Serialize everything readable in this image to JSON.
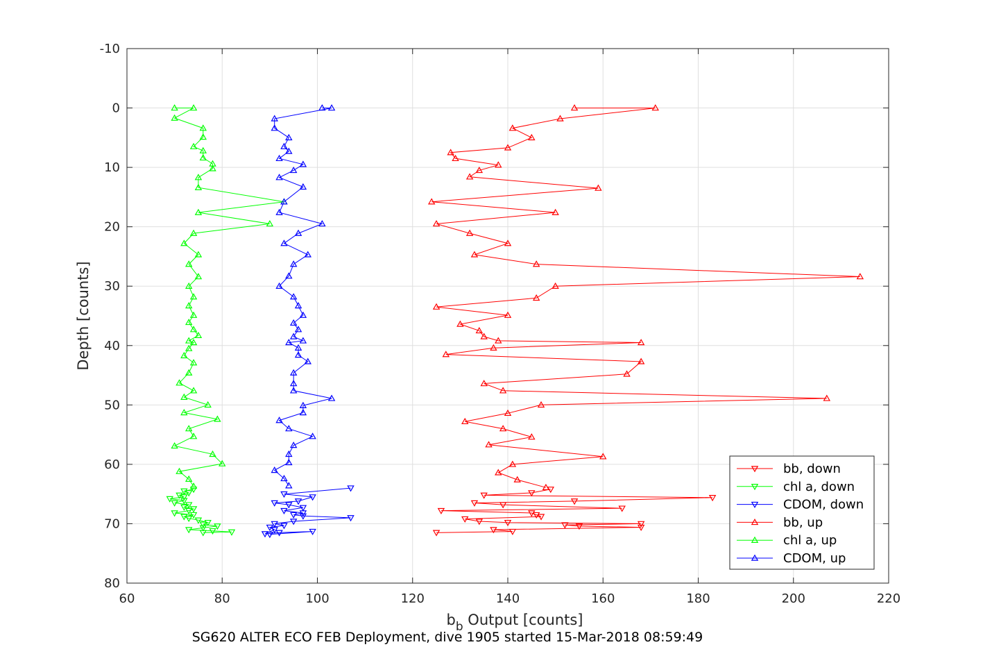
{
  "chart_data": {
    "type": "line",
    "xlabel_main": "b",
    "xlabel_sub": "b",
    "xlabel_rest": " Output [counts]",
    "ylabel": "Depth [counts]",
    "caption": "SG620 ALTER ECO FEB Deployment, dive 1905 started 15-Mar-2018 08:59:49",
    "xlim": [
      60,
      220
    ],
    "ylim": [
      -10,
      80
    ],
    "y_reversed": true,
    "grid": true,
    "legend_position": "bottom-right",
    "x_ticks": [
      "60",
      "80",
      "100",
      "120",
      "140",
      "160",
      "180",
      "200",
      "220"
    ],
    "y_ticks": [
      "-10",
      "0",
      "10",
      "20",
      "30",
      "40",
      "50",
      "60",
      "70",
      "80"
    ],
    "series": [
      {
        "name": "bb, down",
        "color": "#ff0000",
        "marker": "triangle-down",
        "points": [
          [
            125,
            71.5
          ],
          [
            141,
            71.3
          ],
          [
            137,
            71.0
          ],
          [
            168,
            70.6
          ],
          [
            155,
            70.4
          ],
          [
            152,
            70.2
          ],
          [
            168,
            70.0
          ],
          [
            140,
            69.8
          ],
          [
            134,
            69.6
          ],
          [
            131,
            69.2
          ],
          [
            147,
            68.8
          ],
          [
            146,
            68.5
          ],
          [
            145,
            68.2
          ],
          [
            126,
            67.8
          ],
          [
            164,
            67.4
          ],
          [
            139,
            66.8
          ],
          [
            133,
            66.5
          ],
          [
            154,
            66.2
          ],
          [
            183,
            65.6
          ],
          [
            135,
            65.2
          ],
          [
            145,
            64.8
          ],
          [
            149,
            64.2
          ]
        ]
      },
      {
        "name": "chl a, down",
        "color": "#00ff00",
        "marker": "triangle-down",
        "points": [
          [
            76,
            71.5
          ],
          [
            82,
            71.4
          ],
          [
            78,
            71.2
          ],
          [
            73,
            71.0
          ],
          [
            76,
            70.7
          ],
          [
            79,
            70.4
          ],
          [
            76,
            70.1
          ],
          [
            77,
            69.8
          ],
          [
            75,
            69.4
          ],
          [
            73,
            69.1
          ],
          [
            72,
            68.8
          ],
          [
            74,
            68.5
          ],
          [
            70,
            68.2
          ],
          [
            73,
            67.8
          ],
          [
            74,
            67.5
          ],
          [
            72,
            67.2
          ],
          [
            73,
            66.8
          ],
          [
            70,
            66.5
          ],
          [
            72,
            66.1
          ],
          [
            69,
            65.8
          ],
          [
            72,
            65.5
          ],
          [
            71,
            65.2
          ],
          [
            73,
            64.8
          ],
          [
            72,
            64.5
          ],
          [
            74,
            64.2
          ]
        ]
      },
      {
        "name": "CDOM, down",
        "color": "#0000ff",
        "marker": "triangle-down",
        "points": [
          [
            90,
            71.8
          ],
          [
            99,
            71.3
          ],
          [
            92,
            71.5
          ],
          [
            89,
            71.7
          ],
          [
            91,
            71.0
          ],
          [
            90,
            70.6
          ],
          [
            93,
            70.3
          ],
          [
            91,
            70.0
          ],
          [
            95,
            69.6
          ],
          [
            107,
            69.0
          ],
          [
            97,
            68.7
          ],
          [
            95,
            68.5
          ],
          [
            97,
            68.2
          ],
          [
            93,
            67.8
          ],
          [
            97,
            67.3
          ],
          [
            94,
            66.8
          ],
          [
            91,
            66.5
          ],
          [
            96,
            66.2
          ],
          [
            99,
            65.5
          ],
          [
            93,
            65.0
          ],
          [
            107,
            64.0
          ]
        ]
      },
      {
        "name": "bb, up",
        "color": "#ff0000",
        "marker": "triangle-up",
        "points": [
          [
            154,
            0
          ],
          [
            171,
            0
          ],
          [
            151,
            1.8
          ],
          [
            141,
            3.4
          ],
          [
            145,
            5.0
          ],
          [
            140,
            6.7
          ],
          [
            128,
            7.5
          ],
          [
            129,
            8.5
          ],
          [
            138,
            9.6
          ],
          [
            134,
            10.5
          ],
          [
            132,
            11.6
          ],
          [
            159,
            13.5
          ],
          [
            124,
            15.8
          ],
          [
            150,
            17.6
          ],
          [
            125,
            19.5
          ],
          [
            132,
            21.1
          ],
          [
            140,
            22.8
          ],
          [
            133,
            24.7
          ],
          [
            146,
            26.3
          ],
          [
            214,
            28.4
          ],
          [
            150,
            30.0
          ],
          [
            146,
            32.0
          ],
          [
            125,
            33.5
          ],
          [
            140,
            34.9
          ],
          [
            130,
            36.4
          ],
          [
            134,
            37.5
          ],
          [
            135,
            38.5
          ],
          [
            138,
            39.2
          ],
          [
            168,
            39.5
          ],
          [
            137,
            40.4
          ],
          [
            127,
            41.5
          ],
          [
            168,
            42.7
          ],
          [
            165,
            44.8
          ],
          [
            135,
            46.4
          ],
          [
            139,
            47.6
          ],
          [
            207,
            48.9
          ],
          [
            147,
            50.0
          ],
          [
            140,
            51.4
          ],
          [
            131,
            52.8
          ],
          [
            139,
            54.0
          ],
          [
            145,
            55.4
          ],
          [
            136,
            56.7
          ],
          [
            160,
            58.7
          ],
          [
            141,
            60.0
          ],
          [
            138,
            61.4
          ],
          [
            142,
            62.6
          ],
          [
            148,
            63.9
          ]
        ]
      },
      {
        "name": "chl a, up",
        "color": "#00ff00",
        "marker": "triangle-up",
        "points": [
          [
            70,
            0
          ],
          [
            74,
            0
          ],
          [
            70,
            1.7
          ],
          [
            76,
            3.4
          ],
          [
            76,
            4.9
          ],
          [
            74,
            6.5
          ],
          [
            76,
            7.2
          ],
          [
            76,
            8.4
          ],
          [
            78,
            9.4
          ],
          [
            78,
            10.2
          ],
          [
            75,
            11.7
          ],
          [
            75,
            13.4
          ],
          [
            93,
            15.8
          ],
          [
            75,
            17.6
          ],
          [
            90,
            19.5
          ],
          [
            74,
            21.1
          ],
          [
            72,
            22.8
          ],
          [
            75,
            24.7
          ],
          [
            73,
            26.3
          ],
          [
            75,
            28.4
          ],
          [
            73,
            30.0
          ],
          [
            74,
            31.8
          ],
          [
            73,
            33.3
          ],
          [
            74,
            34.9
          ],
          [
            73,
            36.1
          ],
          [
            74,
            37.3
          ],
          [
            75,
            38.3
          ],
          [
            73,
            39.2
          ],
          [
            74,
            39.5
          ],
          [
            73,
            40.5
          ],
          [
            72,
            41.7
          ],
          [
            74,
            42.9
          ],
          [
            73,
            44.6
          ],
          [
            71,
            46.3
          ],
          [
            74,
            47.6
          ],
          [
            72,
            48.7
          ],
          [
            77,
            50.0
          ],
          [
            72,
            51.3
          ],
          [
            79,
            52.4
          ],
          [
            73,
            54.0
          ],
          [
            74,
            55.3
          ],
          [
            70,
            56.9
          ],
          [
            78,
            58.3
          ],
          [
            80,
            59.9
          ],
          [
            71,
            61.2
          ],
          [
            73,
            62.5
          ],
          [
            74,
            63.7
          ]
        ]
      },
      {
        "name": "CDOM, up",
        "color": "#0000ff",
        "marker": "triangle-up",
        "points": [
          [
            101,
            0
          ],
          [
            103,
            0
          ],
          [
            91,
            1.8
          ],
          [
            91,
            3.4
          ],
          [
            94,
            5.0
          ],
          [
            93,
            6.5
          ],
          [
            94,
            7.3
          ],
          [
            92,
            8.5
          ],
          [
            97,
            9.5
          ],
          [
            95,
            10.5
          ],
          [
            92,
            11.7
          ],
          [
            97,
            13.3
          ],
          [
            93,
            15.8
          ],
          [
            92,
            17.6
          ],
          [
            101,
            19.5
          ],
          [
            96,
            21.1
          ],
          [
            93,
            22.8
          ],
          [
            98,
            24.7
          ],
          [
            95,
            26.3
          ],
          [
            94,
            28.3
          ],
          [
            92,
            30.0
          ],
          [
            95,
            31.8
          ],
          [
            96,
            33.3
          ],
          [
            97,
            34.9
          ],
          [
            95,
            36.2
          ],
          [
            96,
            37.3
          ],
          [
            95,
            38.5
          ],
          [
            97,
            39.2
          ],
          [
            94,
            39.5
          ],
          [
            96,
            40.4
          ],
          [
            96,
            41.6
          ],
          [
            98,
            42.7
          ],
          [
            95,
            44.6
          ],
          [
            95,
            46.4
          ],
          [
            95,
            47.6
          ],
          [
            103,
            48.9
          ],
          [
            97,
            50.1
          ],
          [
            97,
            51.3
          ],
          [
            92,
            52.6
          ],
          [
            94,
            54.0
          ],
          [
            99,
            55.3
          ],
          [
            95,
            56.8
          ],
          [
            94,
            58.3
          ],
          [
            94,
            59.7
          ],
          [
            91,
            61.0
          ],
          [
            93,
            62.4
          ],
          [
            94,
            63.6
          ]
        ]
      }
    ]
  }
}
